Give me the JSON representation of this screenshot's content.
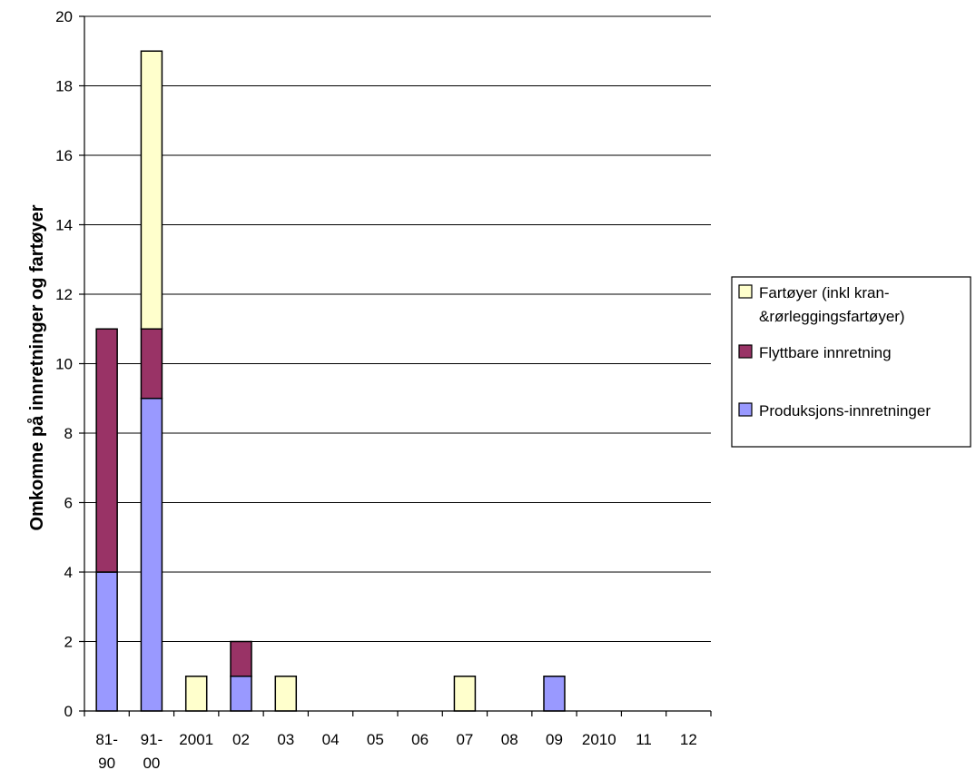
{
  "chart_data": {
    "type": "bar",
    "stacked": true,
    "title": "",
    "xlabel": "",
    "ylabel": "Omkomne på innretninger og fartøyer",
    "ylim": [
      0,
      20
    ],
    "yticks": [
      0,
      2,
      4,
      6,
      8,
      10,
      12,
      14,
      16,
      18,
      20
    ],
    "grid": true,
    "legend_position": "right",
    "categories": [
      [
        "81-",
        "90"
      ],
      [
        "91-",
        "00"
      ],
      [
        "2001"
      ],
      [
        "02"
      ],
      [
        "03"
      ],
      [
        "04"
      ],
      [
        "05"
      ],
      [
        "06"
      ],
      [
        "07"
      ],
      [
        "08"
      ],
      [
        "09"
      ],
      [
        "2010"
      ],
      [
        "11"
      ],
      [
        "12"
      ]
    ],
    "series": [
      {
        "name": "Produksjons-innretninger",
        "color": "#9999ff",
        "values": [
          4,
          9,
          0,
          1,
          0,
          0,
          0,
          0,
          0,
          0,
          1,
          0,
          0,
          0
        ]
      },
      {
        "name": "Flyttbare innretning",
        "color": "#993366",
        "values": [
          7,
          2,
          0,
          1,
          0,
          0,
          0,
          0,
          0,
          0,
          0,
          0,
          0,
          0
        ]
      },
      {
        "name": "Fartøyer (inkl kran-&rørleggingsfartøyer)",
        "name_lines": [
          "Fartøyer (inkl kran-",
          "&rørleggingsfartøyer)"
        ],
        "color": "#ffffcc",
        "values": [
          0,
          8,
          1,
          0,
          1,
          0,
          0,
          0,
          1,
          0,
          0,
          0,
          0,
          0
        ]
      }
    ],
    "legend_order": [
      2,
      1,
      0
    ]
  }
}
